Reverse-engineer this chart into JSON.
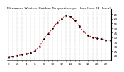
{
  "title": "Milwaukee Weather Outdoor Temperature per Hour (Last 24 Hours)",
  "hours": [
    0,
    1,
    2,
    3,
    4,
    5,
    6,
    7,
    8,
    9,
    10,
    11,
    12,
    13,
    14,
    15,
    16,
    17,
    18,
    19,
    20,
    21,
    22,
    23
  ],
  "temps": [
    18,
    19,
    20,
    21,
    22,
    23,
    25,
    30,
    38,
    44,
    50,
    56,
    60,
    64,
    63,
    58,
    52,
    46,
    42,
    40,
    39,
    38,
    37,
    37
  ],
  "line_color": "#cc0000",
  "marker_color": "#000000",
  "grid_color": "#999999",
  "bg_color": "#ffffff",
  "ylim": [
    15,
    70
  ],
  "yticks": [
    20,
    25,
    30,
    35,
    40,
    45,
    50,
    55,
    60,
    65
  ],
  "title_fontsize": 3.2,
  "tick_fontsize": 3.0,
  "right_axis_color": "#000000"
}
